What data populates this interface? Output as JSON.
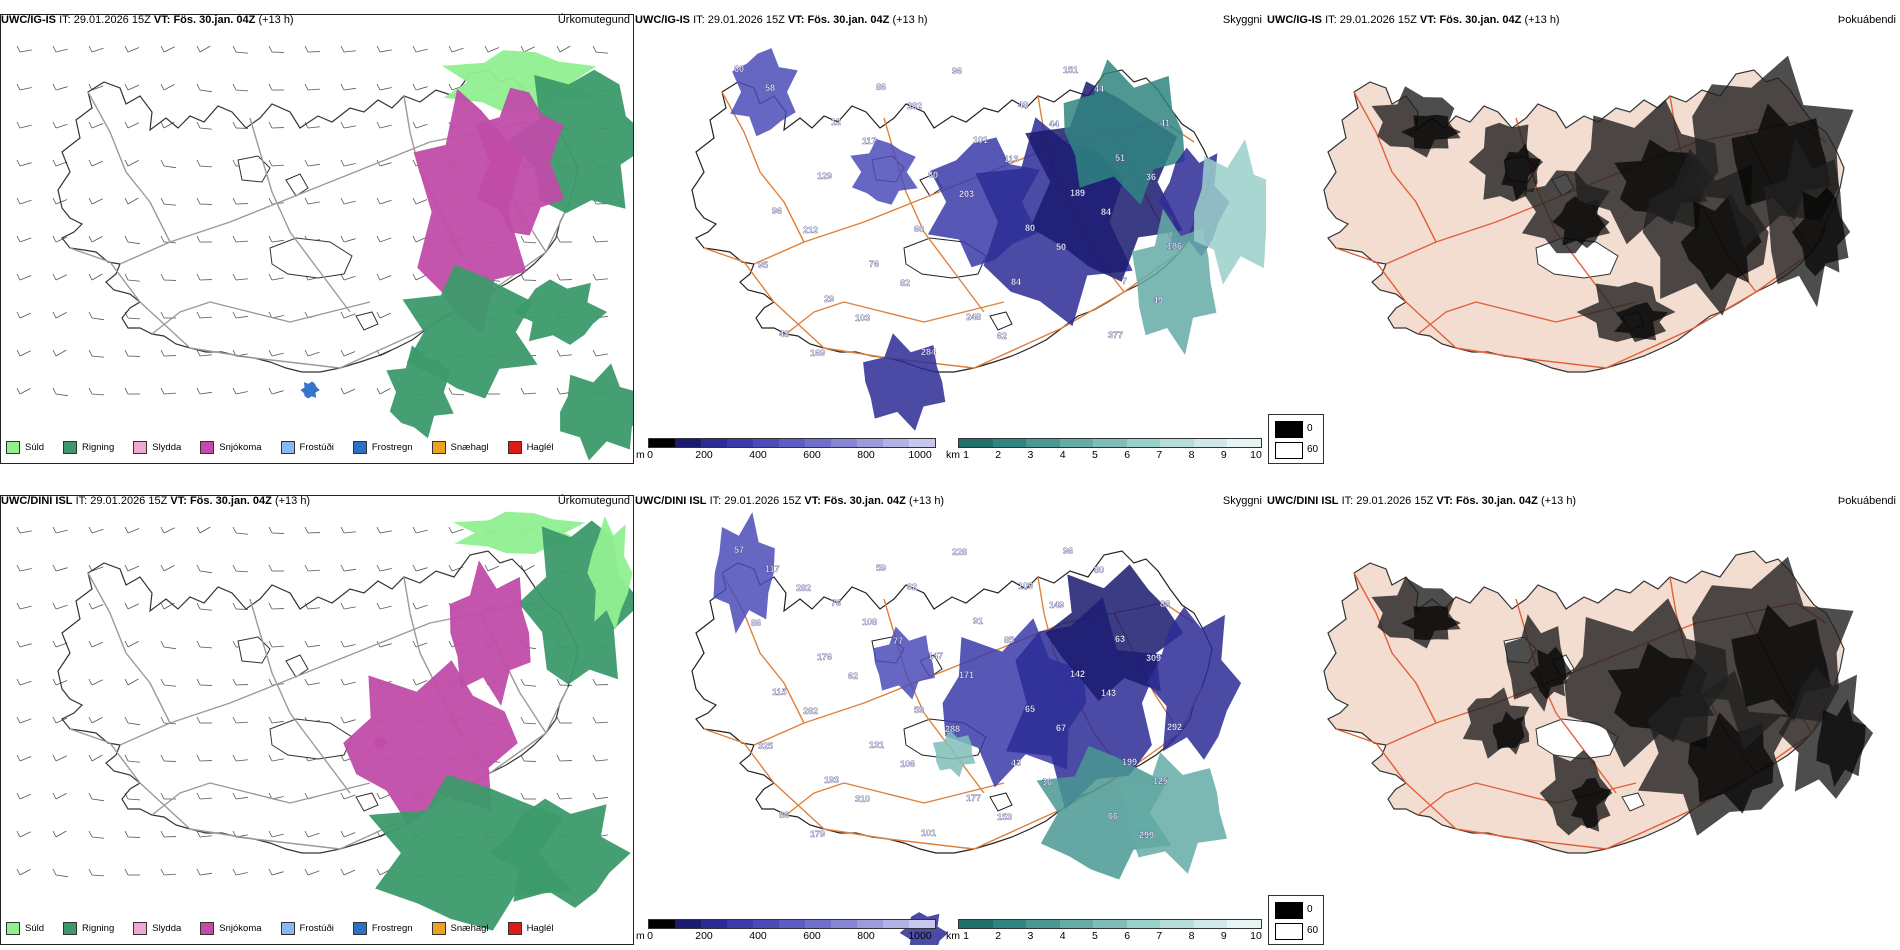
{
  "panels": [
    {
      "id": "p1",
      "model": "UWC/IG-IS",
      "it_label": "IT:",
      "it_value": "29.01.2026 15Z",
      "vt_label": "VT:",
      "vt_value": "Fös. 30.jan. 04Z",
      "lead": "(+13 h)",
      "title": "Úrkomutegund",
      "type": "precip"
    },
    {
      "id": "p2",
      "model": "UWC/IG-IS",
      "it_label": "IT:",
      "it_value": "29.01.2026 15Z",
      "vt_label": "VT:",
      "vt_value": "Fös. 30.jan. 04Z",
      "lead": "(+13 h)",
      "title": "Skyggni",
      "type": "visibility"
    },
    {
      "id": "p3",
      "model": "UWC/IG-IS",
      "it_label": "IT:",
      "it_value": "29.01.2026 15Z",
      "vt_label": "VT:",
      "vt_value": "Fös. 30.jan. 04Z",
      "lead": "(+13 h)",
      "title": "Þokuábendi",
      "type": "fog"
    },
    {
      "id": "p4",
      "model": "UWC/DINI ISL",
      "it_label": "IT:",
      "it_value": "29.01.2026 15Z",
      "vt_label": "VT:",
      "vt_value": "Fös. 30.jan. 04Z",
      "lead": "(+13 h)",
      "title": "Úrkomutegund",
      "type": "precip"
    },
    {
      "id": "p5",
      "model": "UWC/DINI ISL",
      "it_label": "IT:",
      "it_value": "29.01.2026 15Z",
      "vt_label": "VT:",
      "vt_value": "Fös. 30.jan. 04Z",
      "lead": "(+13 h)",
      "title": "Skyggni",
      "type": "visibility"
    },
    {
      "id": "p6",
      "model": "UWC/DINI ISL",
      "it_label": "IT:",
      "it_value": "29.01.2026 15Z",
      "vt_label": "VT:",
      "vt_value": "Fös. 30.jan. 04Z",
      "lead": "(+13 h)",
      "title": "Þokuábendi",
      "type": "fog"
    }
  ],
  "precip_legend": [
    {
      "label": "Súld",
      "color": "#90f090"
    },
    {
      "label": "Rigning",
      "color": "#3c9a6a"
    },
    {
      "label": "Slydda",
      "color": "#f0a8d8"
    },
    {
      "label": "Snjókoma",
      "color": "#c04ca8"
    },
    {
      "label": "Frostúði",
      "color": "#8cb8f0"
    },
    {
      "label": "Frostregn",
      "color": "#2c70c8"
    },
    {
      "label": "Snæhagl",
      "color": "#f0a020"
    },
    {
      "label": "Haglél",
      "color": "#e01818"
    }
  ],
  "ceiling_bar": {
    "unit": "m",
    "ticks": [
      "0",
      "200",
      "400",
      "600",
      "800",
      "1000"
    ],
    "colors": [
      "#000000",
      "#1a1a6e",
      "#2b2b96",
      "#3a3aa8",
      "#4b4bb8",
      "#5c5cc4",
      "#7070cc",
      "#8686d4",
      "#9c9cdc",
      "#b2b2e4",
      "#c8c8ec"
    ]
  },
  "vis_bar": {
    "unit": "km",
    "ticks": [
      "1",
      "2",
      "3",
      "4",
      "5",
      "6",
      "7",
      "8",
      "9",
      "10"
    ],
    "colors": [
      "#1f6f6a",
      "#2f8580",
      "#4a9892",
      "#65aba6",
      "#80bdb8",
      "#9bcfca",
      "#b6ddda",
      "#cfe9e6",
      "#e6f4f3"
    ]
  },
  "fog_legend": {
    "high": "0",
    "low": "60"
  },
  "vis_labels_top": [
    "60",
    "12",
    "60",
    "80",
    "7",
    "48",
    "86",
    "101",
    "189",
    "186",
    "29",
    "284",
    "48",
    "51",
    "96",
    "76",
    "248",
    "151",
    "41",
    "129",
    "60",
    "84",
    "377",
    "58",
    "117",
    "203",
    "50",
    "49",
    "169",
    "282",
    "113",
    "84",
    "95",
    "103",
    "96",
    "44",
    "36",
    "212",
    "82",
    "62",
    "44"
  ],
  "vis_labels_bottom": [
    "57",
    "76",
    "147",
    "65",
    "199",
    "86",
    "59",
    "91",
    "142",
    "292",
    "193",
    "101",
    "109",
    "63",
    "115",
    "131",
    "177",
    "96",
    "88",
    "176",
    "59",
    "43",
    "66",
    "117",
    "108",
    "171",
    "67",
    "125",
    "179",
    "62",
    "85",
    "143",
    "325",
    "310",
    "228",
    "149",
    "309",
    "282",
    "106",
    "153",
    "80",
    "86",
    "62",
    "288",
    "36",
    "299",
    "282",
    "77"
  ]
}
